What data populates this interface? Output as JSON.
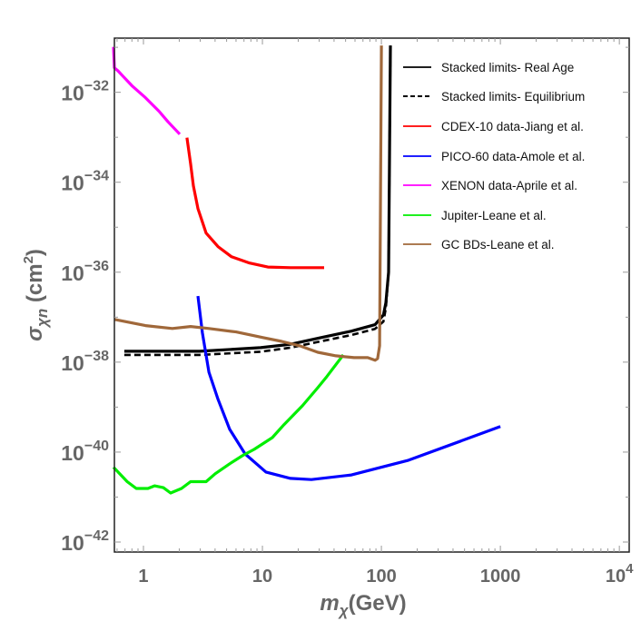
{
  "chart_data": {
    "type": "line",
    "title": "",
    "xlabel": {
      "main": "m",
      "sub": "χ",
      "unit": "(GeV)"
    },
    "ylabel": {
      "main": "σ",
      "sub": "χn",
      "unit_open": " (cm",
      "unit_sup": "2",
      "unit_close": ")"
    },
    "xscale": "log",
    "yscale": "log",
    "xlim": [
      0.57,
      12100
    ],
    "ylim": [
      6e-43,
      1.6e-31
    ],
    "grid": false,
    "legend_position": "top-right",
    "x_ticks": [
      {
        "value": 1,
        "label": "1",
        "exp": ""
      },
      {
        "value": 10,
        "label": "10",
        "exp": ""
      },
      {
        "value": 100,
        "label": "100",
        "exp": ""
      },
      {
        "value": 1000,
        "label": "1000",
        "exp": ""
      },
      {
        "value": 10000,
        "label": "10",
        "exp": "4"
      }
    ],
    "y_ticks": [
      {
        "value": 1e-32,
        "label": "10",
        "exp": "−32"
      },
      {
        "value": 1e-34,
        "label": "10",
        "exp": "−34"
      },
      {
        "value": 1e-36,
        "label": "10",
        "exp": "−36"
      },
      {
        "value": 1e-38,
        "label": "10",
        "exp": "−38"
      },
      {
        "value": 1e-40,
        "label": "10",
        "exp": "−40"
      },
      {
        "value": 1e-42,
        "label": "10",
        "exp": "−42"
      }
    ],
    "series": [
      {
        "name": "Stacked limits- Real Age",
        "color": "#000000",
        "dash": "solid",
        "x": [
          0.69,
          2.97,
          9.66,
          17.2,
          30.8,
          56,
          88.5,
          104,
          109,
          115,
          119
        ],
        "y": [
          1.74e-38,
          1.74e-38,
          2.1e-38,
          2.5e-38,
          3.5e-38,
          4.9e-38,
          6.8e-38,
          1.12e-37,
          2.1e-37,
          1e-36,
          1.1e-31
        ]
      },
      {
        "name": "Stacked limits- Equilibrium",
        "color": "#000000",
        "dash": "dashed",
        "x": [
          0.69,
          2.97,
          9.66,
          17.2,
          30.8,
          56,
          88.5,
          104,
          109,
          115,
          119
        ],
        "y": [
          1.45e-38,
          1.45e-38,
          1.7e-38,
          2.1e-38,
          2.9e-38,
          4e-38,
          5.5e-38,
          8e-38,
          1.6e-37,
          1e-36,
          1.1e-31
        ]
      },
      {
        "name": "CDEX-10 data-Jiang et al.",
        "color": "#ff0000",
        "dash": "solid",
        "x": [
          2.32,
          2.49,
          2.63,
          2.87,
          3.36,
          4.23,
          5.5,
          7.8,
          11.1,
          17.2,
          33
        ],
        "y": [
          9.8e-34,
          2.6e-34,
          8.3e-35,
          2.6e-35,
          7.4e-36,
          3.7e-36,
          2.2e-36,
          1.6e-36,
          1.3e-36,
          1.26e-36,
          1.26e-36
        ]
      },
      {
        "name": "PICO-60 data-Amole et al.",
        "color": "#0000ff",
        "dash": "solid",
        "x": [
          2.87,
          3.13,
          3.55,
          4.23,
          5.31,
          7.16,
          10.7,
          17.2,
          25.8,
          56,
          169,
          1000
        ],
        "y": [
          2.95e-37,
          4.5e-38,
          6e-39,
          1.5e-39,
          3.2e-40,
          9.1e-41,
          3.6e-41,
          2.6e-41,
          2.45e-41,
          3.1e-41,
          6.6e-41,
          3.7e-40
        ]
      },
      {
        "name": "XENON data-Aprile et al.",
        "color": "#ff00ff",
        "dash": "solid",
        "x": [
          0.56,
          0.57,
          0.61,
          0.67,
          0.8,
          1.04,
          1.35,
          1.61,
          2.02
        ],
        "y": [
          1.02e-31,
          3.5e-32,
          3e-32,
          2.3e-32,
          1.4e-32,
          7.6e-33,
          3.8e-33,
          2.2e-33,
          1.17e-33
        ]
      },
      {
        "name": "Jupiter-Leane et al.",
        "color": "#00ee00",
        "dash": "solid",
        "x": [
          0.56,
          0.73,
          0.87,
          1.09,
          1.24,
          1.47,
          1.69,
          2.09,
          2.49,
          3.36,
          4.01,
          5.31,
          6.79,
          8.54,
          12.1,
          15.2,
          21.7,
          29.2,
          34.8,
          47.8
        ],
        "y": [
          4.6e-41,
          2.2e-41,
          1.55e-41,
          1.55e-41,
          1.78e-41,
          1.62e-41,
          1.23e-41,
          1.55e-41,
          2.2e-41,
          2.2e-41,
          3.3e-41,
          5.5e-41,
          8.3e-41,
          1.15e-40,
          2.1e-40,
          4.1e-40,
          1.07e-39,
          2.7e-39,
          4.8e-39,
          1.45e-38
        ]
      },
      {
        "name": "GC BDs-Leane et al.",
        "color": "#a0683a",
        "dash": "solid",
        "x": [
          0.57,
          1.04,
          1.75,
          2.49,
          3.55,
          6.0,
          10.2,
          14.5,
          20.6,
          29.2,
          41.5,
          59,
          76.8,
          88.5,
          93,
          96.6,
          100
        ],
        "y": [
          8.9e-38,
          6.5e-38,
          5.6e-38,
          6.2e-38,
          5.6e-38,
          4.7e-38,
          3.5e-38,
          2.9e-38,
          2.3e-38,
          1.66e-38,
          1.38e-38,
          1.26e-38,
          1.26e-38,
          1.1e-38,
          1.2e-38,
          2.3e-38,
          1.1e-31
        ]
      }
    ]
  }
}
